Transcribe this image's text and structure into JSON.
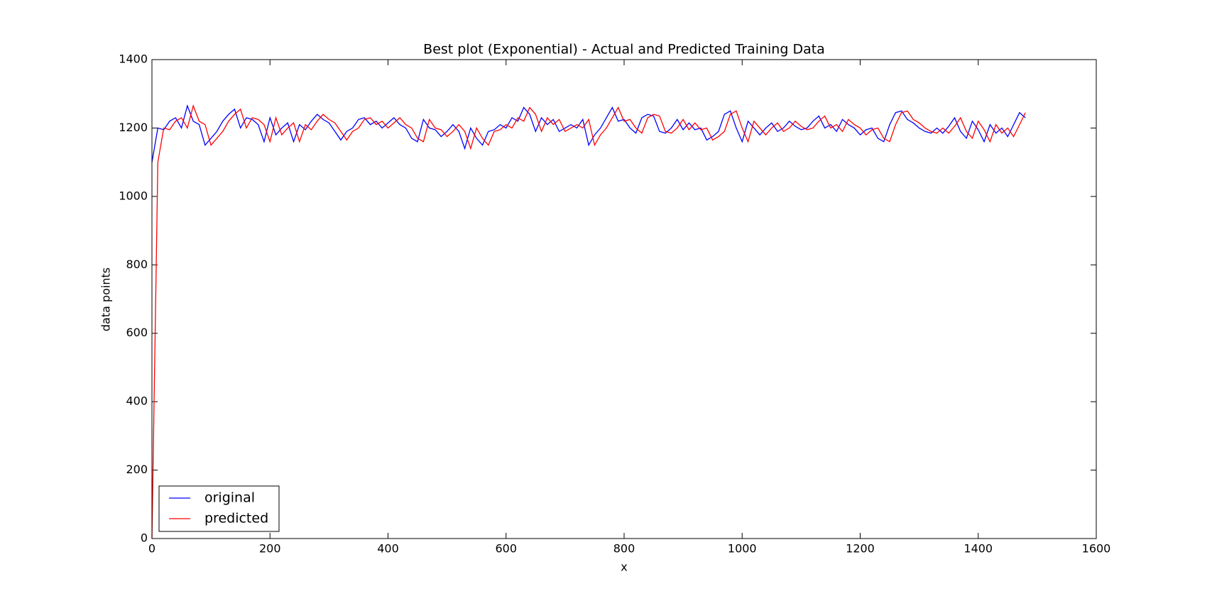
{
  "chart_data": {
    "type": "line",
    "title": "Best plot (Exponential) - Actual and Predicted Training Data",
    "xlabel": "x",
    "ylabel": "data points",
    "xlim": [
      0,
      1600
    ],
    "xticks": [
      0,
      200,
      400,
      600,
      800,
      1000,
      1200,
      1400,
      1600
    ],
    "ylim": [
      0,
      1400
    ],
    "yticks": [
      0,
      200,
      400,
      600,
      800,
      1000,
      1200,
      1400
    ],
    "legend": "lower left",
    "x": [
      0,
      10,
      20,
      30,
      40,
      50,
      60,
      70,
      80,
      90,
      100,
      110,
      120,
      130,
      140,
      150,
      160,
      170,
      180,
      190,
      200,
      210,
      220,
      230,
      240,
      250,
      260,
      270,
      280,
      290,
      300,
      310,
      320,
      330,
      340,
      350,
      360,
      370,
      380,
      390,
      400,
      410,
      420,
      430,
      440,
      450,
      460,
      470,
      480,
      490,
      500,
      510,
      520,
      530,
      540,
      550,
      560,
      570,
      580,
      590,
      600,
      610,
      620,
      630,
      640,
      650,
      660,
      670,
      680,
      690,
      700,
      710,
      720,
      730,
      740,
      750,
      760,
      770,
      780,
      790,
      800,
      810,
      820,
      830,
      840,
      850,
      860,
      870,
      880,
      890,
      900,
      910,
      920,
      930,
      940,
      950,
      960,
      970,
      980,
      990,
      1000,
      1010,
      1020,
      1030,
      1040,
      1050,
      1060,
      1070,
      1080,
      1090,
      1100,
      1110,
      1120,
      1130,
      1140,
      1150,
      1160,
      1170,
      1180,
      1190,
      1200,
      1210,
      1220,
      1230,
      1240,
      1250,
      1260,
      1270,
      1280,
      1290,
      1300,
      1310,
      1320,
      1330,
      1340,
      1350,
      1360,
      1370,
      1380,
      1390,
      1400,
      1410,
      1420,
      1430,
      1440,
      1450,
      1460,
      1470,
      1480
    ],
    "series": [
      {
        "name": "original",
        "color": "#0000ff",
        "values": [
          1100,
          1200,
          1195,
          1220,
          1230,
          1200,
          1265,
          1220,
          1210,
          1150,
          1170,
          1190,
          1220,
          1240,
          1255,
          1200,
          1230,
          1225,
          1210,
          1160,
          1230,
          1180,
          1200,
          1215,
          1160,
          1210,
          1195,
          1220,
          1240,
          1225,
          1215,
          1190,
          1165,
          1190,
          1200,
          1225,
          1230,
          1210,
          1220,
          1200,
          1215,
          1230,
          1210,
          1200,
          1170,
          1160,
          1225,
          1200,
          1195,
          1175,
          1190,
          1210,
          1190,
          1140,
          1200,
          1170,
          1150,
          1190,
          1195,
          1210,
          1200,
          1230,
          1220,
          1260,
          1240,
          1190,
          1230,
          1210,
          1225,
          1190,
          1200,
          1210,
          1200,
          1225,
          1150,
          1180,
          1200,
          1230,
          1260,
          1220,
          1225,
          1200,
          1185,
          1230,
          1240,
          1235,
          1190,
          1185,
          1200,
          1225,
          1195,
          1215,
          1195,
          1200,
          1165,
          1175,
          1190,
          1240,
          1250,
          1200,
          1160,
          1220,
          1200,
          1180,
          1200,
          1215,
          1190,
          1200,
          1220,
          1205,
          1195,
          1200,
          1220,
          1235,
          1200,
          1210,
          1190,
          1225,
          1210,
          1200,
          1180,
          1195,
          1200,
          1170,
          1160,
          1210,
          1245,
          1250,
          1225,
          1215,
          1200,
          1190,
          1185,
          1200,
          1185,
          1205,
          1230,
          1190,
          1170,
          1220,
          1195,
          1160,
          1210,
          1185,
          1200,
          1175,
          1210,
          1245,
          1230
        ]
      },
      {
        "name": "predicted",
        "color": "#ff0000",
        "values": [
          0,
          1100,
          1200,
          1195,
          1220,
          1230,
          1200,
          1265,
          1220,
          1210,
          1150,
          1170,
          1190,
          1220,
          1240,
          1255,
          1200,
          1230,
          1225,
          1210,
          1160,
          1230,
          1180,
          1200,
          1215,
          1160,
          1210,
          1195,
          1220,
          1240,
          1225,
          1215,
          1190,
          1165,
          1190,
          1200,
          1225,
          1230,
          1210,
          1220,
          1200,
          1215,
          1230,
          1210,
          1200,
          1170,
          1160,
          1225,
          1200,
          1195,
          1175,
          1190,
          1210,
          1190,
          1140,
          1200,
          1170,
          1150,
          1190,
          1195,
          1210,
          1200,
          1230,
          1220,
          1260,
          1240,
          1190,
          1230,
          1210,
          1225,
          1190,
          1200,
          1210,
          1200,
          1225,
          1150,
          1180,
          1200,
          1230,
          1260,
          1220,
          1225,
          1200,
          1185,
          1230,
          1240,
          1235,
          1190,
          1185,
          1200,
          1225,
          1195,
          1215,
          1195,
          1200,
          1165,
          1175,
          1190,
          1240,
          1250,
          1200,
          1160,
          1220,
          1200,
          1180,
          1200,
          1215,
          1190,
          1200,
          1220,
          1205,
          1195,
          1200,
          1220,
          1235,
          1200,
          1210,
          1190,
          1225,
          1210,
          1200,
          1180,
          1195,
          1200,
          1170,
          1160,
          1210,
          1245,
          1250,
          1225,
          1215,
          1200,
          1190,
          1185,
          1200,
          1185,
          1205,
          1230,
          1190,
          1170,
          1220,
          1195,
          1160,
          1210,
          1185,
          1200,
          1175,
          1210,
          1245
        ]
      }
    ]
  }
}
